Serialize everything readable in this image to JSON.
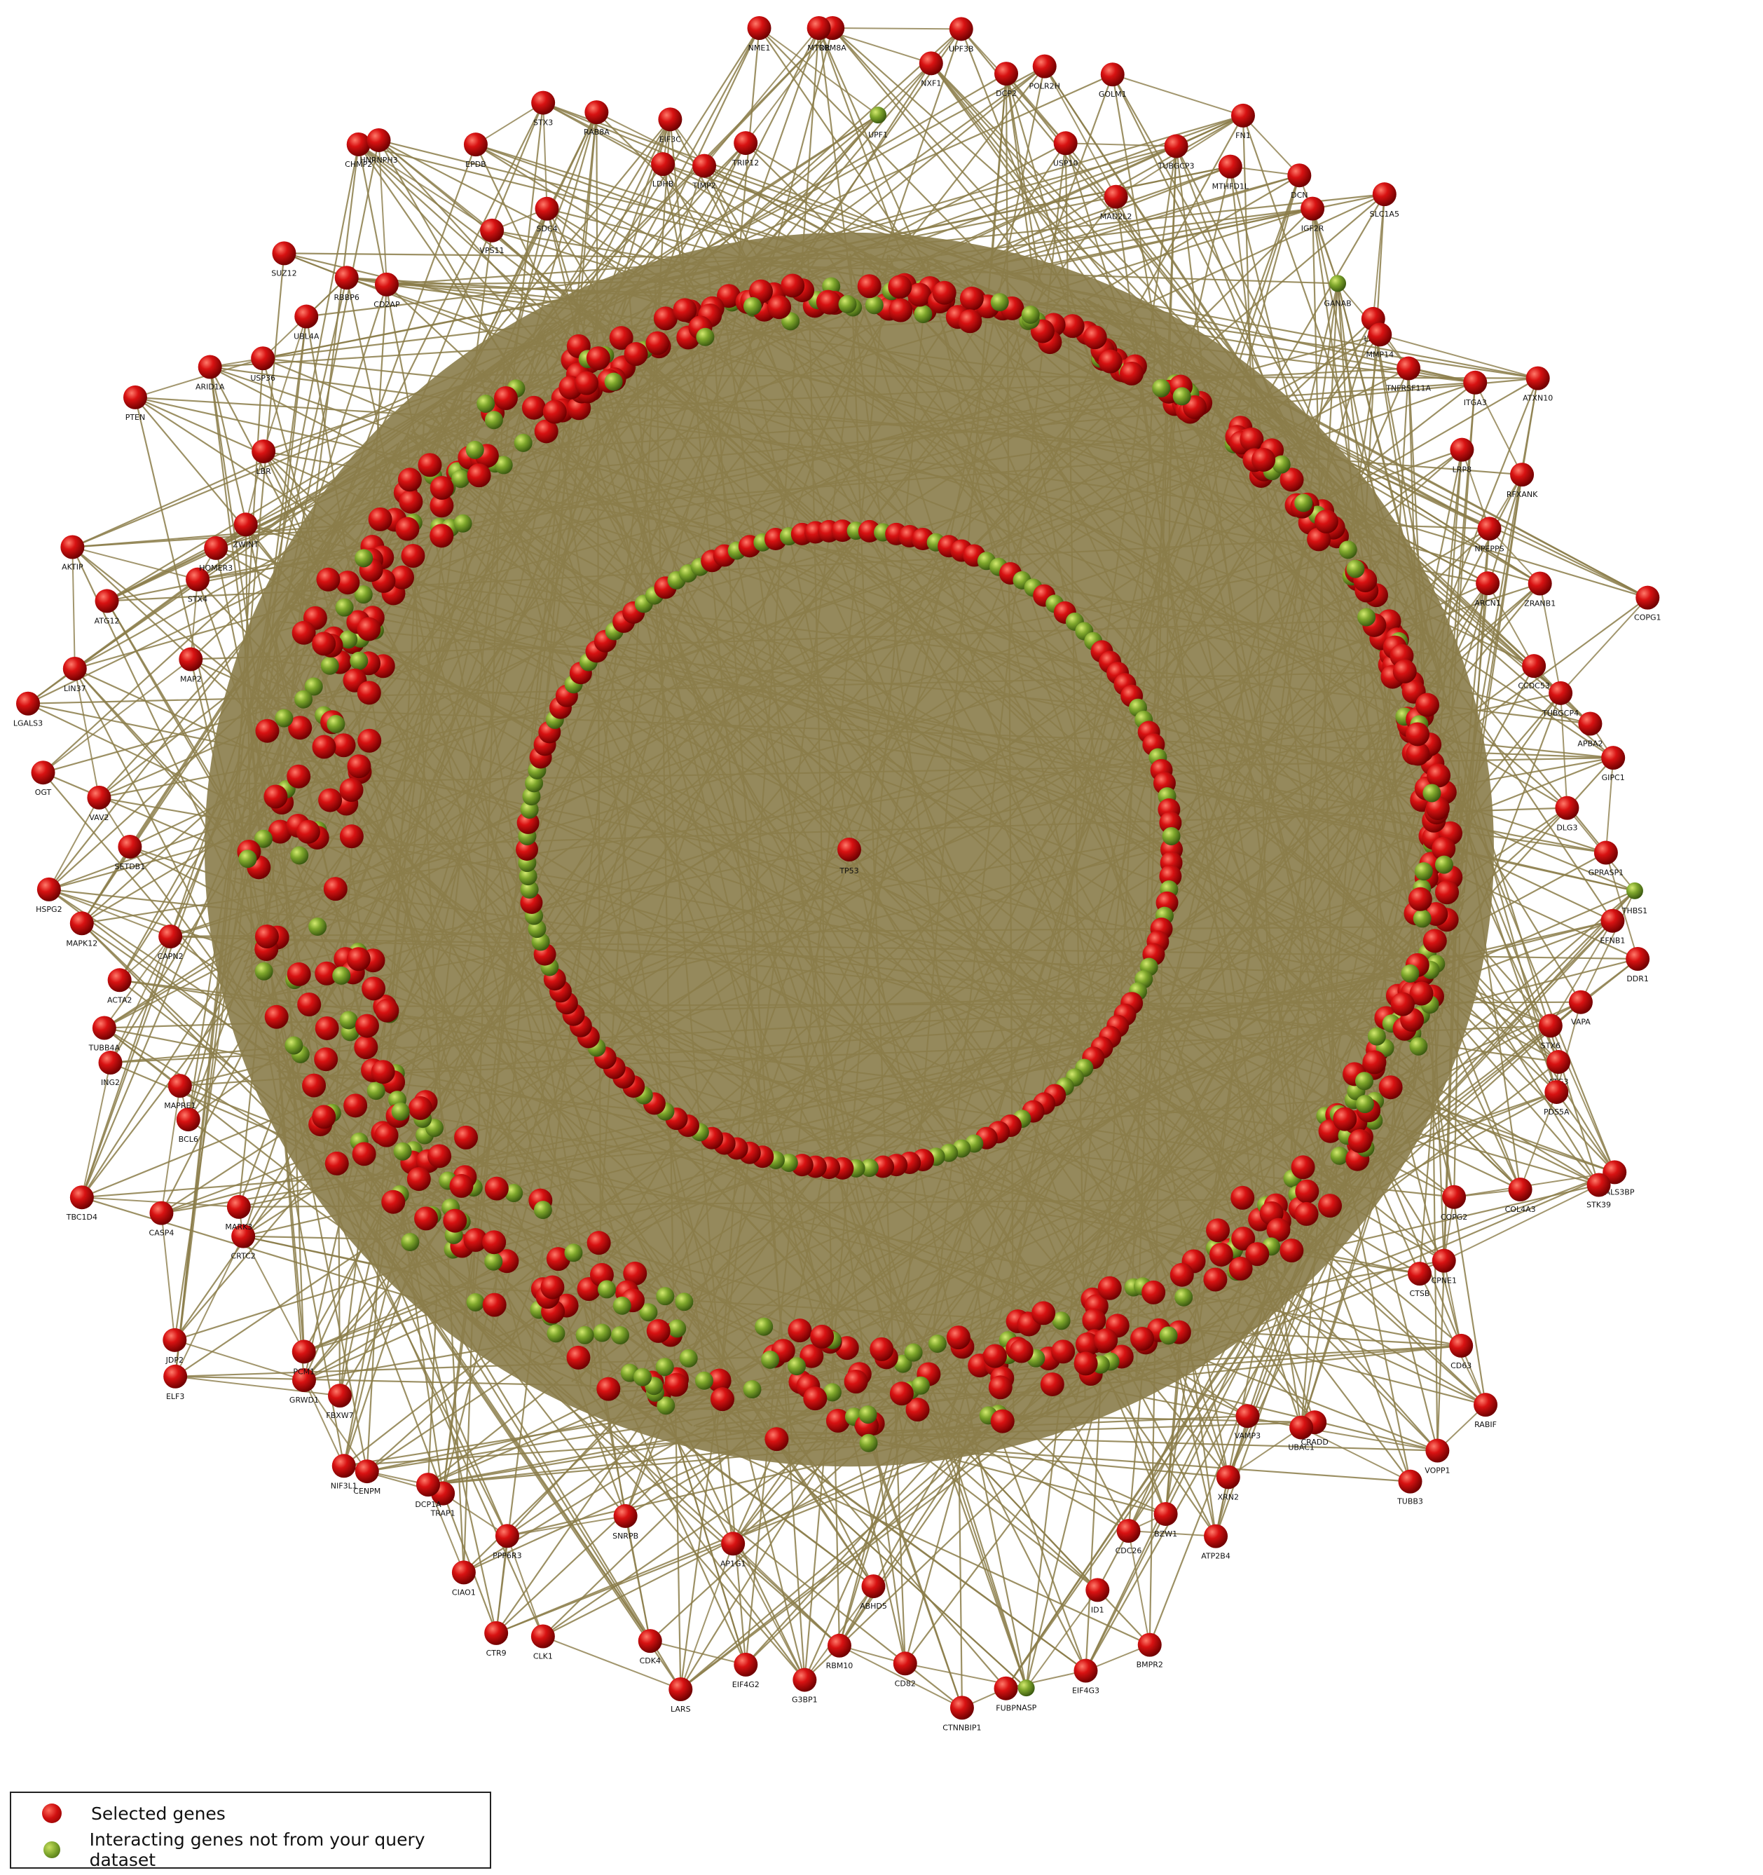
{
  "colors": {
    "edge": "#8b7d4a",
    "edge_fill": "#8c7f4e",
    "selected": "#cc1010",
    "interacting": "#7aa22a",
    "background": "#ffffff"
  },
  "legend": {
    "selected_label": "Selected genes",
    "interacting_label": "Interacting genes not from your query dataset"
  },
  "hub": {
    "label": "TP53",
    "type": "selected"
  },
  "labeled_nodes": [
    {
      "label": "RBM8A",
      "type": "selected"
    },
    {
      "label": "UPF1",
      "type": "interacting"
    },
    {
      "label": "NXF1",
      "type": "selected"
    },
    {
      "label": "UPF3B",
      "type": "selected"
    },
    {
      "label": "DCP2",
      "type": "selected"
    },
    {
      "label": "POLR2H",
      "type": "selected"
    },
    {
      "label": "USP10",
      "type": "selected"
    },
    {
      "label": "GOLM1",
      "type": "selected"
    },
    {
      "label": "MAD2L2",
      "type": "selected"
    },
    {
      "label": "TUBGCP3",
      "type": "selected"
    },
    {
      "label": "FN1",
      "type": "selected"
    },
    {
      "label": "MTHFD1L",
      "type": "selected"
    },
    {
      "label": "DCN",
      "type": "selected"
    },
    {
      "label": "IGF2R",
      "type": "selected"
    },
    {
      "label": "SLC1A5",
      "type": "selected"
    },
    {
      "label": "GANAB",
      "type": "interacting"
    },
    {
      "label": "LTBR",
      "type": "selected"
    },
    {
      "label": "MMP14",
      "type": "selected"
    },
    {
      "label": "TNFRSF11A",
      "type": "selected"
    },
    {
      "label": "ITGA3",
      "type": "selected"
    },
    {
      "label": "ATXN10",
      "type": "selected"
    },
    {
      "label": "LRP8",
      "type": "selected"
    },
    {
      "label": "RFXANK",
      "type": "selected"
    },
    {
      "label": "NPEPPS",
      "type": "selected"
    },
    {
      "label": "ARCN1",
      "type": "selected"
    },
    {
      "label": "ZRANB1",
      "type": "selected"
    },
    {
      "label": "COPG1",
      "type": "selected"
    },
    {
      "label": "CCDC53",
      "type": "selected"
    },
    {
      "label": "TUBGCP4",
      "type": "selected"
    },
    {
      "label": "APBA2",
      "type": "selected"
    },
    {
      "label": "GIPC1",
      "type": "selected"
    },
    {
      "label": "DLG3",
      "type": "selected"
    },
    {
      "label": "GPRASP1",
      "type": "selected"
    },
    {
      "label": "THBS1",
      "type": "interacting"
    },
    {
      "label": "EFNB1",
      "type": "selected"
    },
    {
      "label": "DDR1",
      "type": "selected"
    },
    {
      "label": "VAPA",
      "type": "selected"
    },
    {
      "label": "STX6",
      "type": "selected"
    },
    {
      "label": "ATG3",
      "type": "selected"
    },
    {
      "label": "PDS5A",
      "type": "selected"
    },
    {
      "label": "LGALS3BP",
      "type": "selected"
    },
    {
      "label": "STK39",
      "type": "selected"
    },
    {
      "label": "COL4A3",
      "type": "selected"
    },
    {
      "label": "COPG2",
      "type": "selected"
    },
    {
      "label": "CPNE1",
      "type": "selected"
    },
    {
      "label": "CTSB",
      "type": "selected"
    },
    {
      "label": "CD63",
      "type": "selected"
    },
    {
      "label": "RABIF",
      "type": "selected"
    },
    {
      "label": "VOPP1",
      "type": "selected"
    },
    {
      "label": "TUBB3",
      "type": "selected"
    },
    {
      "label": "CRADD",
      "type": "selected"
    },
    {
      "label": "UBAC1",
      "type": "selected"
    },
    {
      "label": "VAMP3",
      "type": "selected"
    },
    {
      "label": "XRN2",
      "type": "selected"
    },
    {
      "label": "ATP2B4",
      "type": "selected"
    },
    {
      "label": "BZW1",
      "type": "selected"
    },
    {
      "label": "CDC26",
      "type": "selected"
    },
    {
      "label": "BMPR2",
      "type": "selected"
    },
    {
      "label": "ID1",
      "type": "selected"
    },
    {
      "label": "EIF4G3",
      "type": "selected"
    },
    {
      "label": "NASP",
      "type": "interacting"
    },
    {
      "label": "FUBP",
      "type": "selected"
    },
    {
      "label": "CTNNBIP1",
      "type": "selected"
    },
    {
      "label": "CD82",
      "type": "selected"
    },
    {
      "label": "ABHD5",
      "type": "selected"
    },
    {
      "label": "RBM10",
      "type": "selected"
    },
    {
      "label": "G3BP1",
      "type": "selected"
    },
    {
      "label": "EIF4G2",
      "type": "selected"
    },
    {
      "label": "AP1G1",
      "type": "selected"
    },
    {
      "label": "LARS",
      "type": "selected"
    },
    {
      "label": "CDK4",
      "type": "selected"
    },
    {
      "label": "SNRPB",
      "type": "selected"
    },
    {
      "label": "CLK1",
      "type": "selected"
    },
    {
      "label": "CTR9",
      "type": "selected"
    },
    {
      "label": "PPP6R3",
      "type": "selected"
    },
    {
      "label": "CIAO1",
      "type": "selected"
    },
    {
      "label": "TRAP1",
      "type": "selected"
    },
    {
      "label": "DCP1A",
      "type": "selected"
    },
    {
      "label": "CENPM",
      "type": "selected"
    },
    {
      "label": "NIF3L1",
      "type": "selected"
    },
    {
      "label": "FBXW7",
      "type": "selected"
    },
    {
      "label": "GRWD1",
      "type": "selected"
    },
    {
      "label": "PCM1",
      "type": "selected"
    },
    {
      "label": "ELF3",
      "type": "selected"
    },
    {
      "label": "JDP2",
      "type": "selected"
    },
    {
      "label": "CRTC2",
      "type": "selected"
    },
    {
      "label": "MARK3",
      "type": "selected"
    },
    {
      "label": "CASP4",
      "type": "selected"
    },
    {
      "label": "TBC1D4",
      "type": "selected"
    },
    {
      "label": "BCL6",
      "type": "selected"
    },
    {
      "label": "MAPRE1",
      "type": "selected"
    },
    {
      "label": "ING2",
      "type": "selected"
    },
    {
      "label": "TUBB4A",
      "type": "selected"
    },
    {
      "label": "ACTA2",
      "type": "selected"
    },
    {
      "label": "CAPN2",
      "type": "selected"
    },
    {
      "label": "MAPK12",
      "type": "selected"
    },
    {
      "label": "HSPG2",
      "type": "selected"
    },
    {
      "label": "SETDB1",
      "type": "selected"
    },
    {
      "label": "VAV2",
      "type": "selected"
    },
    {
      "label": "OGT",
      "type": "selected"
    },
    {
      "label": "LGALS3",
      "type": "selected"
    },
    {
      "label": "LIN37",
      "type": "selected"
    },
    {
      "label": "MAP2",
      "type": "selected"
    },
    {
      "label": "ATG12",
      "type": "selected"
    },
    {
      "label": "AKTIP",
      "type": "selected"
    },
    {
      "label": "STX4",
      "type": "selected"
    },
    {
      "label": "HOMER3",
      "type": "selected"
    },
    {
      "label": "ZWINT",
      "type": "selected"
    },
    {
      "label": "PTEN",
      "type": "selected"
    },
    {
      "label": "LBR",
      "type": "selected"
    },
    {
      "label": "ARID1A",
      "type": "selected"
    },
    {
      "label": "USP36",
      "type": "selected"
    },
    {
      "label": "UBL4A",
      "type": "selected"
    },
    {
      "label": "SUZ12",
      "type": "selected"
    },
    {
      "label": "RBBP6",
      "type": "selected"
    },
    {
      "label": "CD2AP",
      "type": "selected"
    },
    {
      "label": "CHMP2",
      "type": "selected"
    },
    {
      "label": "HNRNPH3",
      "type": "selected"
    },
    {
      "label": "VPS11",
      "type": "selected"
    },
    {
      "label": "EPDB",
      "type": "selected"
    },
    {
      "label": "SDC4",
      "type": "selected"
    },
    {
      "label": "STX3",
      "type": "selected"
    },
    {
      "label": "RAB8A",
      "type": "selected"
    },
    {
      "label": "LDHB",
      "type": "selected"
    },
    {
      "label": "EIF3C",
      "type": "selected"
    },
    {
      "label": "TIMP2",
      "type": "selected"
    },
    {
      "label": "TRIP12",
      "type": "selected"
    },
    {
      "label": "NME1",
      "type": "selected"
    },
    {
      "label": "MTOR",
      "type": "selected"
    }
  ]
}
